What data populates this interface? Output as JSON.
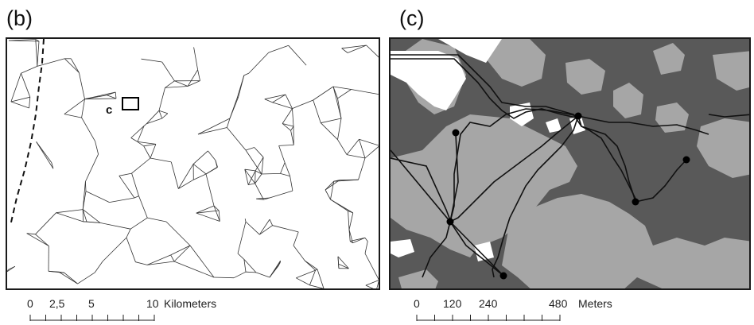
{
  "panels": {
    "b": {
      "label": "(b)",
      "inset_label": "c",
      "scale": {
        "ticks": [
          "0",
          "2,5",
          "5",
          "10"
        ],
        "unit": "Kilometers"
      }
    },
    "c": {
      "label": "(c)",
      "scale": {
        "ticks": [
          "0",
          "120",
          "240",
          "480"
        ],
        "unit": "Meters"
      }
    }
  },
  "colors": {
    "dark_gray": "#595959",
    "light_gray": "#a6a6a6",
    "white": "#ffffff",
    "network_line": "#2b2b2b",
    "frame": "#1a1a1a"
  }
}
